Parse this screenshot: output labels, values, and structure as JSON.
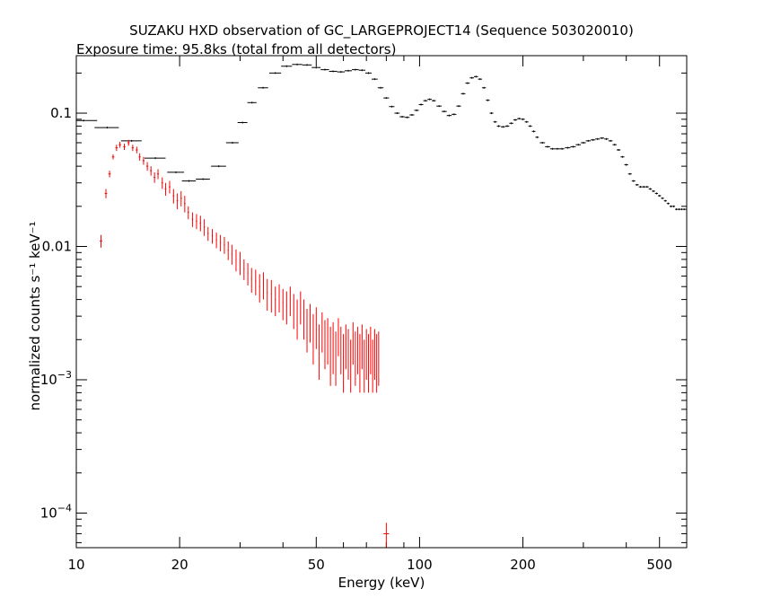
{
  "chart_data": {
    "type": "scatter",
    "title": "SUZAKU HXD observation of GC_LARGEPROJECT14 (Sequence 503020010)",
    "subtitle": "Exposure time: 95.8ks (total from all detectors)",
    "xlabel": "Energy (keV)",
    "ylabel": "normalized counts s⁻¹ keV⁻¹",
    "x_scale": "log",
    "y_scale": "log",
    "xlim": [
      10,
      600
    ],
    "ylim": [
      5.5e-05,
      0.27
    ],
    "grid": false,
    "x_ticks": [
      {
        "value": 10,
        "label": "10"
      },
      {
        "value": 20,
        "label": "20"
      },
      {
        "value": 50,
        "label": "50"
      },
      {
        "value": 100,
        "label": "100"
      },
      {
        "value": 200,
        "label": "200"
      },
      {
        "value": 500,
        "label": "500"
      }
    ],
    "y_ticks": [
      {
        "value": 0.1,
        "label": "0.1",
        "exp": ""
      },
      {
        "value": 0.01,
        "label": "0.01",
        "exp": ""
      },
      {
        "value": 0.001,
        "label": "10",
        "exp": "−3"
      },
      {
        "value": 0.0001,
        "label": "10",
        "exp": "−4"
      }
    ],
    "series": [
      {
        "color": "#000000",
        "style": "steps",
        "points": [
          [
            10.5,
            0.088,
            1.0
          ],
          [
            12.3,
            0.078,
            1.0
          ],
          [
            14.5,
            0.062,
            1.0
          ],
          [
            17.0,
            0.046,
            1.2
          ],
          [
            19.5,
            0.036,
            1.1
          ],
          [
            21.3,
            0.031,
            1.0
          ],
          [
            23.4,
            0.032,
            1.1
          ],
          [
            26.0,
            0.04,
            1.3
          ],
          [
            28.5,
            0.06,
            1.2
          ],
          [
            30.5,
            0.085,
            1.0
          ],
          [
            32.5,
            0.12,
            1.0
          ],
          [
            35.0,
            0.155,
            1.2
          ],
          [
            38.0,
            0.2,
            1.5
          ],
          [
            41.0,
            0.225,
            1.5
          ],
          [
            44.0,
            0.232,
            1.5
          ],
          [
            47.0,
            0.23,
            1.5
          ],
          [
            50.0,
            0.22,
            1.5
          ],
          [
            53.0,
            0.212,
            1.5
          ],
          [
            56.0,
            0.206,
            1.5
          ],
          [
            59.0,
            0.204,
            1.5
          ],
          [
            62.0,
            0.208,
            1.5
          ],
          [
            65.0,
            0.212,
            1.5
          ],
          [
            68.0,
            0.21,
            1.5
          ],
          [
            71.0,
            0.2,
            1.5
          ],
          [
            74.0,
            0.18,
            1.5
          ],
          [
            77.0,
            0.155,
            1.5
          ],
          [
            80.0,
            0.13,
            1.5
          ],
          [
            83.0,
            0.112,
            1.5
          ],
          [
            86.0,
            0.1,
            1.5
          ],
          [
            89.0,
            0.094,
            1.5
          ],
          [
            92.0,
            0.093,
            1.5
          ],
          [
            95.0,
            0.097,
            1.5
          ],
          [
            98.0,
            0.105,
            1.5
          ],
          [
            101.0,
            0.116,
            1.5
          ],
          [
            104.0,
            0.124,
            1.5
          ],
          [
            107.0,
            0.127,
            1.5
          ],
          [
            110.0,
            0.124,
            1.5
          ],
          [
            114.0,
            0.113,
            2.0
          ],
          [
            118.0,
            0.103,
            2.0
          ],
          [
            122.0,
            0.096,
            2.0
          ],
          [
            126.0,
            0.098,
            2.0
          ],
          [
            130.0,
            0.113,
            2.0
          ],
          [
            134.0,
            0.14,
            2.0
          ],
          [
            138.0,
            0.168,
            2.0
          ],
          [
            142.0,
            0.184,
            2.0
          ],
          [
            146.0,
            0.188,
            2.0
          ],
          [
            150.0,
            0.18,
            2.0
          ],
          [
            154.0,
            0.155,
            2.0
          ],
          [
            158.0,
            0.125,
            2.0
          ],
          [
            162.0,
            0.1,
            2.0
          ],
          [
            166.0,
            0.086,
            2.0
          ],
          [
            170.0,
            0.08,
            2.0
          ],
          [
            175.0,
            0.079,
            2.5
          ],
          [
            180.0,
            0.08,
            2.5
          ],
          [
            185.0,
            0.084,
            2.5
          ],
          [
            190.0,
            0.089,
            2.5
          ],
          [
            195.0,
            0.091,
            2.5
          ],
          [
            200.0,
            0.09,
            2.5
          ],
          [
            205.0,
            0.086,
            2.5
          ],
          [
            210.0,
            0.08,
            2.5
          ],
          [
            215.0,
            0.073,
            2.5
          ],
          [
            220.0,
            0.066,
            2.5
          ],
          [
            228.0,
            0.06,
            4.0
          ],
          [
            236.0,
            0.056,
            4.0
          ],
          [
            244.0,
            0.054,
            4.0
          ],
          [
            252.0,
            0.054,
            4.0
          ],
          [
            260.0,
            0.054,
            4.0
          ],
          [
            270.0,
            0.055,
            5.0
          ],
          [
            280.0,
            0.056,
            5.0
          ],
          [
            290.0,
            0.058,
            5.0
          ],
          [
            300.0,
            0.06,
            5.0
          ],
          [
            310.0,
            0.062,
            5.0
          ],
          [
            320.0,
            0.063,
            5.0
          ],
          [
            330.0,
            0.064,
            5.0
          ],
          [
            340.0,
            0.065,
            5.0
          ],
          [
            350.0,
            0.064,
            5.0
          ],
          [
            360.0,
            0.062,
            5.0
          ],
          [
            370.0,
            0.058,
            5.0
          ],
          [
            380.0,
            0.053,
            5.0
          ],
          [
            390.0,
            0.047,
            5.0
          ],
          [
            400.0,
            0.041,
            5.0
          ],
          [
            410.0,
            0.035,
            5.0
          ],
          [
            420.0,
            0.031,
            5.0
          ],
          [
            430.0,
            0.029,
            5.0
          ],
          [
            440.0,
            0.028,
            5.0
          ],
          [
            450.0,
            0.028,
            5.0
          ],
          [
            460.0,
            0.028,
            5.0
          ],
          [
            470.0,
            0.027,
            5.0
          ],
          [
            480.0,
            0.026,
            5.0
          ],
          [
            490.0,
            0.025,
            5.0
          ],
          [
            500.0,
            0.024,
            5.0
          ],
          [
            510.0,
            0.023,
            5.0
          ],
          [
            520.0,
            0.022,
            5.0
          ],
          [
            530.0,
            0.021,
            5.0
          ],
          [
            540.0,
            0.02,
            5.0
          ],
          [
            550.0,
            0.02,
            5.0
          ],
          [
            560.0,
            0.019,
            5.0
          ],
          [
            570.0,
            0.019,
            5.0
          ],
          [
            580.0,
            0.019,
            5.0
          ],
          [
            590.0,
            0.019,
            5.0
          ],
          [
            600.0,
            0.019,
            5.0
          ]
        ]
      },
      {
        "color": "#ff0000",
        "style": "crosses",
        "points": [
          [
            11.8,
            0.011,
            0.1,
            0.0012,
            0.0012
          ],
          [
            12.2,
            0.025,
            0.1,
            0.002,
            0.002
          ],
          [
            12.5,
            0.035,
            0.1,
            0.002,
            0.002
          ],
          [
            12.8,
            0.047,
            0.1,
            0.002,
            0.002
          ],
          [
            13.1,
            0.055,
            0.1,
            0.003,
            0.003
          ],
          [
            13.4,
            0.058,
            0.1,
            0.003,
            0.003
          ],
          [
            13.8,
            0.056,
            0.1,
            0.003,
            0.003
          ],
          [
            14.2,
            0.06,
            0.1,
            0.003,
            0.003
          ],
          [
            14.6,
            0.055,
            0.1,
            0.003,
            0.003
          ],
          [
            15.0,
            0.053,
            0.1,
            0.003,
            0.003
          ],
          [
            15.3,
            0.047,
            0.1,
            0.003,
            0.003
          ],
          [
            15.7,
            0.044,
            0.1,
            0.003,
            0.003
          ],
          [
            16.1,
            0.04,
            0.1,
            0.003,
            0.003
          ],
          [
            16.5,
            0.037,
            0.1,
            0.003,
            0.003
          ],
          [
            16.9,
            0.033,
            0.1,
            0.003,
            0.003
          ],
          [
            17.3,
            0.035,
            0.1,
            0.003,
            0.003
          ],
          [
            17.8,
            0.03,
            0.1,
            0.003,
            0.003
          ],
          [
            18.2,
            0.027,
            0.1,
            0.003,
            0.003
          ],
          [
            18.7,
            0.028,
            0.1,
            0.003,
            0.003
          ],
          [
            19.2,
            0.024,
            0.1,
            0.003,
            0.003
          ],
          [
            19.7,
            0.022,
            0.1,
            0.003,
            0.003
          ],
          [
            20.2,
            0.023,
            0.1,
            0.003,
            0.003
          ],
          [
            20.7,
            0.021,
            0.1,
            0.003,
            0.003
          ],
          [
            21.2,
            0.018,
            0.1,
            0.002,
            0.002
          ],
          [
            21.8,
            0.016,
            0.1,
            0.002,
            0.002
          ],
          [
            22.4,
            0.0155,
            0.1,
            0.002,
            0.002
          ],
          [
            23.0,
            0.015,
            0.1,
            0.002,
            0.002
          ],
          [
            23.6,
            0.014,
            0.1,
            0.002,
            0.002
          ],
          [
            24.2,
            0.0125,
            0.1,
            0.0015,
            0.0015
          ],
          [
            24.9,
            0.012,
            0.1,
            0.0015,
            0.0015
          ],
          [
            25.6,
            0.0112,
            0.1,
            0.0015,
            0.0015
          ],
          [
            26.3,
            0.0107,
            0.1,
            0.0015,
            0.0015
          ],
          [
            27.0,
            0.0103,
            0.1,
            0.0015,
            0.0015
          ],
          [
            27.7,
            0.0094,
            0.1,
            0.0015,
            0.0015
          ],
          [
            28.4,
            0.0088,
            0.1,
            0.0015,
            0.0015
          ],
          [
            29.2,
            0.008,
            0.1,
            0.0015,
            0.0015
          ],
          [
            30.0,
            0.0076,
            0.1,
            0.0015,
            0.0015
          ],
          [
            30.8,
            0.0068,
            0.1,
            0.0012,
            0.0012
          ],
          [
            31.6,
            0.0063,
            0.1,
            0.0012,
            0.0012
          ],
          [
            32.4,
            0.0057,
            0.1,
            0.0012,
            0.0012
          ],
          [
            33.3,
            0.0055,
            0.1,
            0.0012,
            0.0012
          ],
          [
            34.2,
            0.005,
            0.1,
            0.0012,
            0.0012
          ],
          [
            35.1,
            0.0052,
            0.1,
            0.0012,
            0.0012
          ],
          [
            36.0,
            0.0045,
            0.1,
            0.0012,
            0.0012
          ],
          [
            37.0,
            0.0044,
            0.1,
            0.0012,
            0.0012
          ],
          [
            38.0,
            0.004,
            0.1,
            0.001,
            0.001
          ],
          [
            39.0,
            0.0042,
            0.1,
            0.001,
            0.001
          ],
          [
            40.0,
            0.0038,
            0.1,
            0.001,
            0.001
          ],
          [
            41.0,
            0.0036,
            0.1,
            0.001,
            0.001
          ],
          [
            42.0,
            0.004,
            0.1,
            0.001,
            0.001
          ],
          [
            43.0,
            0.0034,
            0.1,
            0.001,
            0.001
          ],
          [
            44.0,
            0.003,
            0.1,
            0.001,
            0.001
          ],
          [
            45.0,
            0.0036,
            0.1,
            0.001,
            0.001
          ],
          [
            46.0,
            0.003,
            0.1,
            0.001,
            0.001
          ],
          [
            47.0,
            0.0025,
            0.1,
            0.0009,
            0.0009
          ],
          [
            48.0,
            0.0028,
            0.1,
            0.0009,
            0.0009
          ],
          [
            49.0,
            0.0022,
            0.1,
            0.0009,
            0.0009
          ],
          [
            50.0,
            0.0026,
            0.1,
            0.0009,
            0.0009
          ],
          [
            51.0,
            0.0018,
            0.1,
            0.0008,
            0.0008
          ],
          [
            52.0,
            0.0024,
            0.1,
            0.0008,
            0.0008
          ],
          [
            53.0,
            0.002,
            0.1,
            0.0008,
            0.0008
          ],
          [
            54.0,
            0.0021,
            0.1,
            0.0008,
            0.0008
          ],
          [
            55.0,
            0.0017,
            0.1,
            0.0008,
            0.0008
          ],
          [
            56.0,
            0.0019,
            0.1,
            0.0008,
            0.0008
          ],
          [
            57.0,
            0.0016,
            0.1,
            0.0007,
            0.0007
          ],
          [
            58.0,
            0.0022,
            0.1,
            0.0007,
            0.0007
          ],
          [
            59.0,
            0.0018,
            0.1,
            0.0007,
            0.0007
          ],
          [
            60.0,
            0.0015,
            0.1,
            0.0007,
            0.0007
          ],
          [
            61.0,
            0.0019,
            0.1,
            0.0007,
            0.0007
          ],
          [
            62.0,
            0.0017,
            0.1,
            0.0007,
            0.0007
          ],
          [
            63.0,
            0.0014,
            0.1,
            0.0006,
            0.0006
          ],
          [
            64.0,
            0.002,
            0.1,
            0.0007,
            0.0007
          ],
          [
            65.0,
            0.0016,
            0.1,
            0.0007,
            0.0007
          ],
          [
            66.0,
            0.0018,
            0.1,
            0.0007,
            0.0007
          ],
          [
            67.0,
            0.0015,
            0.1,
            0.0007,
            0.0007
          ],
          [
            68.0,
            0.0019,
            0.1,
            0.0007,
            0.0007
          ],
          [
            69.0,
            0.0014,
            0.1,
            0.0006,
            0.0006
          ],
          [
            70.0,
            0.0017,
            0.1,
            0.0007,
            0.0007
          ],
          [
            71.0,
            0.0015,
            0.1,
            0.0007,
            0.0007
          ],
          [
            72.0,
            0.0018,
            0.1,
            0.0007,
            0.0007
          ],
          [
            73.0,
            0.0014,
            0.1,
            0.0006,
            0.0006
          ],
          [
            74.0,
            0.0017,
            0.1,
            0.0007,
            0.0007
          ],
          [
            75.0,
            0.0015,
            0.1,
            0.0007,
            0.0007
          ],
          [
            76.0,
            0.0016,
            0.1,
            0.0007,
            0.0007
          ],
          [
            80.0,
            7e-05,
            1.5,
            1.45e-05,
            1.45e-05
          ]
        ]
      }
    ]
  }
}
